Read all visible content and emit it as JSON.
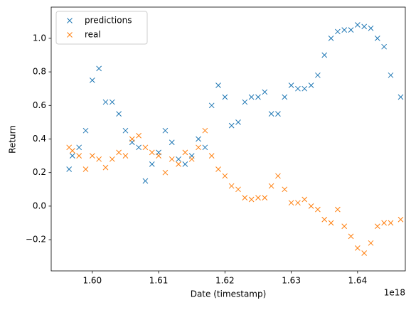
{
  "chart_data": {
    "type": "scatter",
    "x_label": "Date (timestamp)",
    "y_label": "Return",
    "x_offset_label": "1e18",
    "x": [
      1.5965,
      1.597,
      1.598,
      1.599,
      1.6,
      1.601,
      1.602,
      1.603,
      1.604,
      1.605,
      1.606,
      1.607,
      1.608,
      1.609,
      1.61,
      1.611,
      1.612,
      1.613,
      1.614,
      1.615,
      1.616,
      1.617,
      1.618,
      1.619,
      1.62,
      1.621,
      1.622,
      1.623,
      1.624,
      1.625,
      1.626,
      1.627,
      1.628,
      1.629,
      1.63,
      1.631,
      1.632,
      1.633,
      1.634,
      1.635,
      1.636,
      1.637,
      1.638,
      1.639,
      1.64,
      1.641,
      1.642,
      1.643,
      1.644,
      1.645,
      1.6465
    ],
    "series": [
      {
        "name": "predictions",
        "color": "#1f77b4",
        "values": [
          0.22,
          0.3,
          0.35,
          0.45,
          0.75,
          0.82,
          0.62,
          0.62,
          0.55,
          0.45,
          0.38,
          0.35,
          0.15,
          0.25,
          0.32,
          0.45,
          0.38,
          0.28,
          0.25,
          0.3,
          0.4,
          0.35,
          0.6,
          0.72,
          0.65,
          0.48,
          0.5,
          0.62,
          0.65,
          0.65,
          0.68,
          0.55,
          0.55,
          0.65,
          0.72,
          0.7,
          0.7,
          0.72,
          0.78,
          0.9,
          1.0,
          1.04,
          1.05,
          1.05,
          1.08,
          1.07,
          1.06,
          1.0,
          0.95,
          0.78,
          0.65
        ]
      },
      {
        "name": "real",
        "color": "#ff7f0e",
        "values": [
          0.35,
          0.33,
          0.3,
          0.22,
          0.3,
          0.28,
          0.23,
          0.28,
          0.32,
          0.3,
          0.4,
          0.42,
          0.35,
          0.32,
          0.3,
          0.2,
          0.28,
          0.25,
          0.32,
          0.28,
          0.35,
          0.45,
          0.3,
          0.22,
          0.18,
          0.12,
          0.1,
          0.05,
          0.04,
          0.05,
          0.05,
          0.12,
          0.18,
          0.1,
          0.02,
          0.02,
          0.04,
          0.0,
          -0.02,
          -0.08,
          -0.1,
          -0.02,
          -0.12,
          -0.18,
          -0.25,
          -0.28,
          -0.22,
          -0.12,
          -0.1,
          -0.1,
          -0.08
        ]
      }
    ],
    "xlim": [
      1.5938,
      1.6472
    ],
    "xticks": [
      {
        "value": 1.6,
        "label": "1.60"
      },
      {
        "value": 1.61,
        "label": "1.61"
      },
      {
        "value": 1.62,
        "label": "1.62"
      },
      {
        "value": 1.63,
        "label": "1.63"
      },
      {
        "value": 1.64,
        "label": "1.64"
      }
    ],
    "ylim": [
      -0.386,
      1.186
    ],
    "yticks": [
      {
        "value": -0.2,
        "label": "−0.2"
      },
      {
        "value": 0.0,
        "label": "0.0"
      },
      0.2,
      0.4,
      0.6,
      0.8,
      {
        "value": 1.0,
        "label": "1.0"
      }
    ],
    "legend": "upper left",
    "grid": false
  }
}
